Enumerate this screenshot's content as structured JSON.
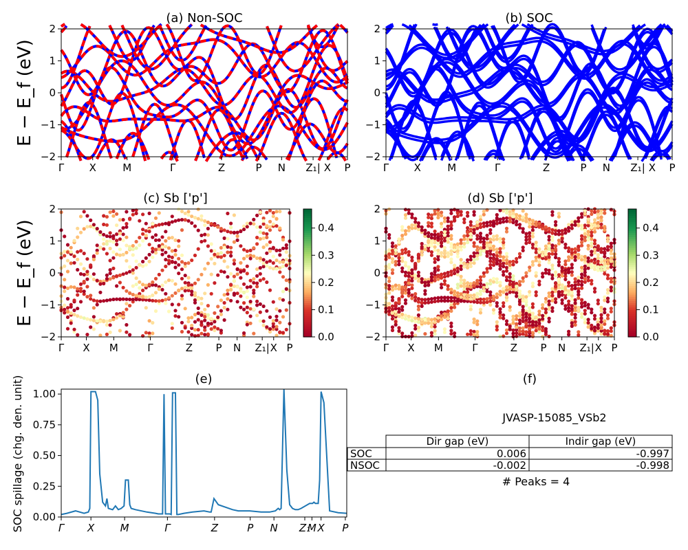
{
  "figure": {
    "band_ylabel": "E − E_f (eV)",
    "spillage_ylabel": "SOC spillage (chg. den. unit)"
  },
  "band_panels": [
    {
      "id": "a",
      "title": "(a) Non-SOC",
      "style": "dashed-red-blue"
    },
    {
      "id": "b",
      "title": "(b) SOC",
      "style": "solid-blue"
    },
    {
      "id": "c",
      "title": "(c)  Sb ['p']",
      "style": "projected"
    },
    {
      "id": "d",
      "title": "(d) Sb ['p']",
      "style": "projected"
    }
  ],
  "kpath_labels_top": [
    "Γ",
    "X",
    "M",
    "Γ",
    "Z",
    "P",
    "N",
    "Z₁|",
    "X",
    "P"
  ],
  "kpath_labels_spill": [
    "Γ",
    "X",
    "M",
    "Γ",
    "Z",
    "P",
    "N",
    "Z₁",
    "M",
    "X",
    "P"
  ],
  "colorbar": {
    "ticks": [
      "0.0",
      "0.1",
      "0.2",
      "0.3",
      "0.4"
    ],
    "range": [
      0.0,
      0.47
    ],
    "colormap": "RdYlGn"
  },
  "panel_f": {
    "title": "(f)",
    "name": "JVASP-15085_VSb2",
    "col_headers": [
      "Dir gap (eV)",
      "Indir gap (eV)"
    ],
    "rows": [
      {
        "label": "SOC",
        "dir": "0.006",
        "indir": "-0.997"
      },
      {
        "label": "NSOC",
        "dir": "-0.002",
        "indir": "-0.998"
      }
    ],
    "peaks_text": "# Peaks = 4"
  },
  "chart_data": [
    {
      "type": "line",
      "title": "(a) Non-SOC",
      "ylabel": "E − E_f (eV)",
      "ylim": [
        -2,
        2
      ],
      "yticks": [
        -2,
        -1,
        0,
        1,
        2
      ],
      "xticks": [
        "Γ",
        "X",
        "M",
        "Γ",
        "Z",
        "P",
        "N",
        "Z₁|",
        "X",
        "P"
      ],
      "kpath_positions": [
        0,
        0.11,
        0.23,
        0.39,
        0.56,
        0.69,
        0.77,
        0.88,
        0.93,
        1.0
      ],
      "series": []
    },
    {
      "type": "line",
      "title": "(b) SOC",
      "ylim": [
        -2,
        2
      ],
      "yticks": [
        -2,
        -1,
        0,
        1,
        2
      ],
      "xticks": [
        "Γ",
        "X",
        "M",
        "Γ",
        "Z",
        "P",
        "N",
        "Z₁|",
        "X",
        "P"
      ],
      "series": []
    },
    {
      "type": "scatter",
      "title": "(c)  Sb ['p']",
      "ylabel": "E − E_f (eV)",
      "ylim": [
        -2,
        2
      ],
      "yticks": [
        -2,
        -1,
        0,
        1,
        2
      ],
      "colorbar_range": [
        0,
        0.47
      ],
      "series": []
    },
    {
      "type": "scatter",
      "title": "(d) Sb ['p']",
      "ylim": [
        -2,
        2
      ],
      "yticks": [
        -2,
        -1,
        0,
        1,
        2
      ],
      "colorbar_range": [
        0,
        0.47
      ],
      "series": []
    },
    {
      "type": "line",
      "title": "(e)",
      "ylabel": "SOC spillage (chg. den. unit)",
      "ylim": [
        0,
        1.04
      ],
      "yticks": [
        "0.00",
        "0.25",
        "0.50",
        "0.75",
        "1.00"
      ],
      "xticks": [
        "Γ",
        "X",
        "M",
        "Γ",
        "Z",
        "P",
        "N",
        "Z₁",
        "M",
        "X",
        "P"
      ],
      "xtick_positions": [
        0,
        0.104,
        0.222,
        0.372,
        0.537,
        0.662,
        0.745,
        0.853,
        0.878,
        0.91,
        0.995
      ],
      "x": [
        0,
        0.02,
        0.05,
        0.08,
        0.095,
        0.1,
        0.104,
        0.12,
        0.128,
        0.135,
        0.145,
        0.155,
        0.16,
        0.165,
        0.18,
        0.19,
        0.2,
        0.21,
        0.22,
        0.225,
        0.235,
        0.24,
        0.245,
        0.26,
        0.3,
        0.33,
        0.34,
        0.35,
        0.355,
        0.36,
        0.365,
        0.38,
        0.385,
        0.39,
        0.4,
        0.405,
        0.41,
        0.43,
        0.46,
        0.5,
        0.52,
        0.525,
        0.535,
        0.55,
        0.6,
        0.62,
        0.64,
        0.66,
        0.7,
        0.73,
        0.75,
        0.755,
        0.76,
        0.765,
        0.77,
        0.78,
        0.79,
        0.8,
        0.81,
        0.82,
        0.83,
        0.84,
        0.87,
        0.88,
        0.885,
        0.89,
        0.9,
        0.905,
        0.91,
        0.92,
        0.94,
        0.97,
        1.0
      ],
      "series": [
        {
          "values": [
            0.02,
            0.03,
            0.05,
            0.03,
            0.04,
            0.07,
            1.02,
            1.02,
            0.95,
            0.35,
            0.12,
            0.09,
            0.15,
            0.07,
            0.06,
            0.09,
            0.06,
            0.07,
            0.09,
            0.3,
            0.3,
            0.1,
            0.07,
            0.06,
            0.04,
            0.03,
            0.025,
            0.025,
            0.025,
            1.0,
            0.025,
            0.025,
            0.02,
            1.01,
            1.01,
            0.02,
            0.02,
            0.03,
            0.04,
            0.05,
            0.04,
            0.04,
            0.15,
            0.1,
            0.06,
            0.05,
            0.05,
            0.05,
            0.04,
            0.04,
            0.05,
            0.06,
            0.07,
            0.06,
            0.07,
            1.04,
            0.38,
            0.1,
            0.07,
            0.06,
            0.06,
            0.07,
            0.11,
            0.11,
            0.12,
            0.11,
            0.11,
            0.3,
            1.02,
            0.93,
            0.05,
            0.035,
            0.03
          ]
        }
      ]
    }
  ]
}
